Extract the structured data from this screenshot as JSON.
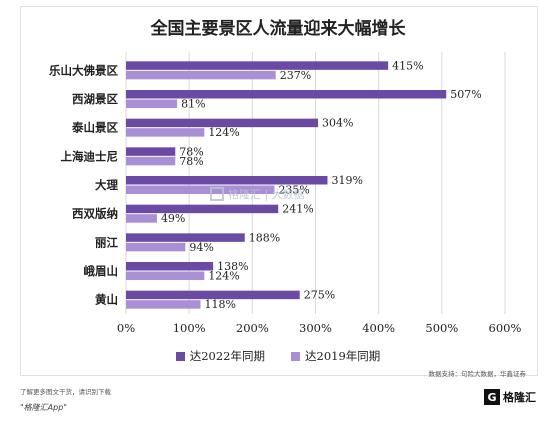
{
  "chart_data": {
    "type": "bar",
    "orientation": "horizontal",
    "title": "全国主要景区人流量迎来大幅增长",
    "categories": [
      "乐山大佛景区",
      "西湖景区",
      "泰山景区",
      "上海迪士尼",
      "大理",
      "西双版纳",
      "丽江",
      "峨眉山",
      "黄山"
    ],
    "series": [
      {
        "name": "达2022年同期",
        "color": "#6a4aa3",
        "values": [
          415,
          507,
          304,
          78,
          319,
          241,
          188,
          138,
          275
        ]
      },
      {
        "name": "达2019年同期",
        "color": "#a98fd6",
        "values": [
          237,
          81,
          124,
          78,
          235,
          49,
          94,
          124,
          118
        ]
      }
    ],
    "value_labels": [
      [
        "415%",
        "507%",
        "304%",
        "78%",
        "319%",
        "241%",
        "188%",
        "138%",
        "275%"
      ],
      [
        "237%",
        "81%",
        "124%",
        "78%",
        "235%",
        "49%",
        "94%",
        "124%",
        "118%"
      ]
    ],
    "xlim": [
      0,
      600
    ],
    "xticks": [
      "0%",
      "100%",
      "200%",
      "300%",
      "400%",
      "500%",
      "600%"
    ],
    "grid": true,
    "legend_position": "bottom"
  },
  "source": "数据支持：句险大数据，华鑫证券",
  "watermark": "格隆汇 | 大数据",
  "footer": {
    "note": "了解更多图文干货，请识别下载",
    "app": "\"格隆汇App\"",
    "brand": "格隆汇",
    "brand_mark": "G"
  },
  "colors": {
    "series_2022": "#6a4aa3",
    "series_2019": "#a98fd6",
    "grid": "#d9d9d9"
  }
}
